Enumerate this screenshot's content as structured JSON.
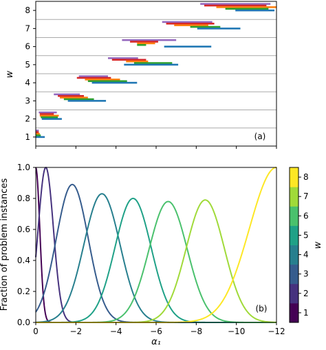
{
  "chart_data": [
    {
      "type": "interval",
      "panel_label": "(a)",
      "ylabel": "w",
      "ytick_labels": [
        "1",
        "2",
        "3",
        "4",
        "5",
        "6",
        "7",
        "8"
      ],
      "xlim": [
        0,
        -12
      ],
      "ylim": [
        0.5,
        8.5
      ],
      "grid": "horizontal separators between w levels",
      "row_offsets": [
        0.4,
        0.3,
        0.2,
        0.1,
        0.0,
        -0.1,
        -0.2,
        -0.3
      ],
      "colors": [
        "#9467bd",
        "#d62728",
        "#ff7f0e",
        "#2ca02c",
        "#1f77b4"
      ],
      "series": [
        {
          "name": "purple",
          "color": "#9467bd",
          "intervals": [
            [
              0.0,
              -0.15
            ],
            [
              -0.15,
              -1.05
            ],
            [
              -0.9,
              -2.2
            ],
            [
              -2.15,
              -3.6
            ],
            [
              -3.6,
              -5.1
            ],
            [
              -4.3,
              -7.0
            ],
            [
              -6.3,
              -8.8
            ],
            [
              -8.2,
              -11.7
            ]
          ]
        },
        {
          "name": "red",
          "color": "#d62728",
          "intervals": [
            [
              0.0,
              -0.15
            ],
            [
              -0.2,
              -0.9
            ],
            [
              -1.1,
              -2.4
            ],
            [
              -2.05,
              -3.75
            ],
            [
              -3.8,
              -5.5
            ],
            [
              -4.7,
              -6.1
            ],
            [
              -6.5,
              -8.9
            ],
            [
              -8.4,
              -11.5
            ]
          ]
        },
        {
          "name": "orange",
          "color": "#ff7f0e",
          "intervals": [
            [
              0.0,
              -0.2
            ],
            [
              -0.2,
              -1.15
            ],
            [
              -1.2,
              -2.6
            ],
            [
              -2.45,
              -4.2
            ],
            [
              -4.5,
              -5.6
            ],
            [
              -5.05,
              -5.95
            ],
            [
              -6.9,
              -8.6
            ],
            [
              -9.0,
              -12.0
            ]
          ]
        },
        {
          "name": "green",
          "color": "#2ca02c",
          "intervals": [
            [
              0.0,
              -0.25
            ],
            [
              -0.25,
              -1.1
            ],
            [
              -1.4,
              -2.9
            ],
            [
              -2.6,
              -4.55
            ],
            [
              -4.9,
              -6.8
            ],
            [
              -5.05,
              -5.5
            ],
            [
              -7.7,
              -9.2
            ],
            [
              -9.45,
              -11.6
            ]
          ]
        },
        {
          "name": "blue",
          "color": "#1f77b4",
          "intervals": [
            [
              0.0,
              -0.45
            ],
            [
              -0.3,
              -1.3
            ],
            [
              -1.6,
              -3.5
            ],
            [
              -2.8,
              -5.05
            ],
            [
              -4.4,
              -7.1
            ],
            [
              -6.4,
              -8.75
            ],
            [
              -8.05,
              -10.2
            ],
            [
              -9.95,
              -11.9
            ]
          ]
        }
      ]
    },
    {
      "type": "line",
      "panel_label": "(b)",
      "xlabel": "α₁",
      "ylabel": "Fraction of problem instances",
      "xlim": [
        0,
        -12
      ],
      "ylim": [
        0.0,
        1.0
      ],
      "xtick_values": [
        0,
        -2,
        -4,
        -6,
        -8,
        -10,
        -12
      ],
      "xtick_labels": [
        "0",
        "−2",
        "−4",
        "−6",
        "−8",
        "−10",
        "−12"
      ],
      "ytick_values": [
        0.0,
        0.2,
        0.4,
        0.6,
        0.8,
        1.0
      ],
      "ytick_labels": [
        "0.0",
        "0.2",
        "0.4",
        "0.6",
        "0.8",
        "1.0"
      ],
      "series": [
        {
          "name": "1",
          "color": "#440154",
          "center": 0.0,
          "peak": 1.0,
          "width": 0.2,
          "kind": "left-edge"
        },
        {
          "name": "2",
          "color": "#46327e",
          "center": -0.5,
          "peak": 1.0,
          "width": 0.38,
          "kind": "peak"
        },
        {
          "name": "3",
          "color": "#365c8d",
          "center": -1.82,
          "peak": 0.89,
          "width": 0.8,
          "kind": "peak"
        },
        {
          "name": "4",
          "color": "#277f8e",
          "center": -3.3,
          "peak": 0.83,
          "width": 0.9,
          "kind": "peak"
        },
        {
          "name": "5",
          "color": "#1fa187",
          "center": -4.85,
          "peak": 0.8,
          "width": 0.9,
          "kind": "peak"
        },
        {
          "name": "6",
          "color": "#4ac16d",
          "center": -6.6,
          "peak": 0.78,
          "width": 0.95,
          "kind": "peak"
        },
        {
          "name": "7",
          "color": "#a0da39",
          "center": -8.45,
          "peak": 0.79,
          "width": 0.95,
          "kind": "peak"
        },
        {
          "name": "8",
          "color": "#fde725",
          "center": -12.0,
          "peak": 1.0,
          "width": 1.35,
          "kind": "right-edge"
        }
      ]
    }
  ],
  "colorbar": {
    "label": "w",
    "tick_labels": [
      "1",
      "2",
      "3",
      "4",
      "5",
      "6",
      "7",
      "8"
    ],
    "colors": [
      "#440154",
      "#46327e",
      "#365c8d",
      "#277f8e",
      "#1fa187",
      "#4ac16d",
      "#a0da39",
      "#fde725"
    ]
  }
}
